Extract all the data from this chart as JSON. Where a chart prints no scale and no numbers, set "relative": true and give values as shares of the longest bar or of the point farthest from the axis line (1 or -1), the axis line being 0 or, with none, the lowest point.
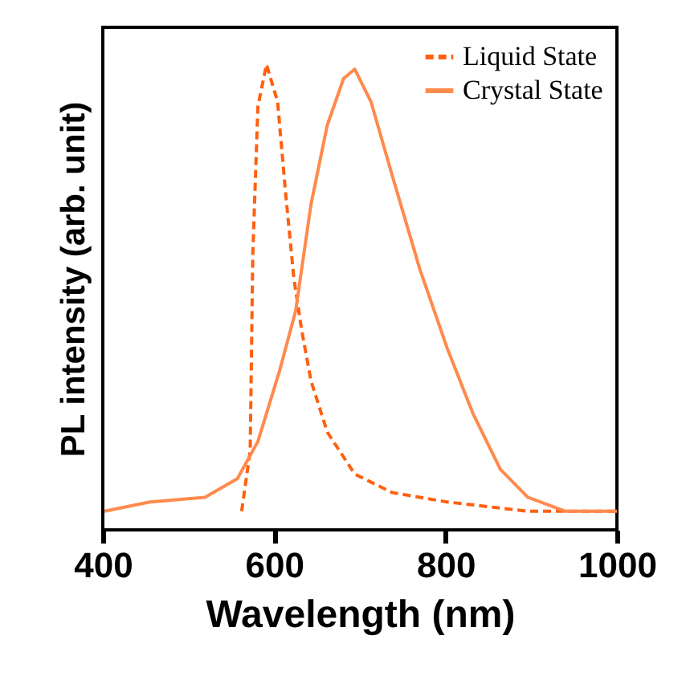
{
  "chart_data": {
    "type": "line",
    "xlabel": "Wavelength (nm)",
    "ylabel": "PL intensity (arb. unit)",
    "relative": true,
    "xlim": [
      400,
      1000
    ],
    "xticks": [
      400,
      600,
      800,
      1000
    ],
    "grid": false,
    "legend": "top right",
    "series": [
      {
        "name": "Liquid State",
        "color": "#ff6010",
        "line_style": "dashed",
        "x": [
          562,
          572,
          575,
          581,
          591,
          604,
          613,
          623,
          632,
          643,
          662,
          694,
          738,
          802,
          896,
          1000
        ],
        "values": [
          0.04,
          0.17,
          0.59,
          0.91,
          1.0,
          0.92,
          0.73,
          0.54,
          0.43,
          0.32,
          0.21,
          0.12,
          0.08,
          0.06,
          0.04,
          0.04
        ]
      },
      {
        "name": "Crystal State",
        "color": "#ff8a4c",
        "line_style": "solid",
        "x": [
          402,
          455,
          519,
          557,
          581,
          606,
          625,
          643,
          662,
          681,
          694,
          713,
          738,
          770,
          802,
          832,
          864,
          896,
          940,
          1000
        ],
        "values": [
          0.04,
          0.06,
          0.07,
          0.11,
          0.19,
          0.34,
          0.47,
          0.7,
          0.87,
          0.97,
          0.99,
          0.92,
          0.76,
          0.56,
          0.39,
          0.25,
          0.13,
          0.07,
          0.04,
          0.04
        ]
      }
    ]
  }
}
